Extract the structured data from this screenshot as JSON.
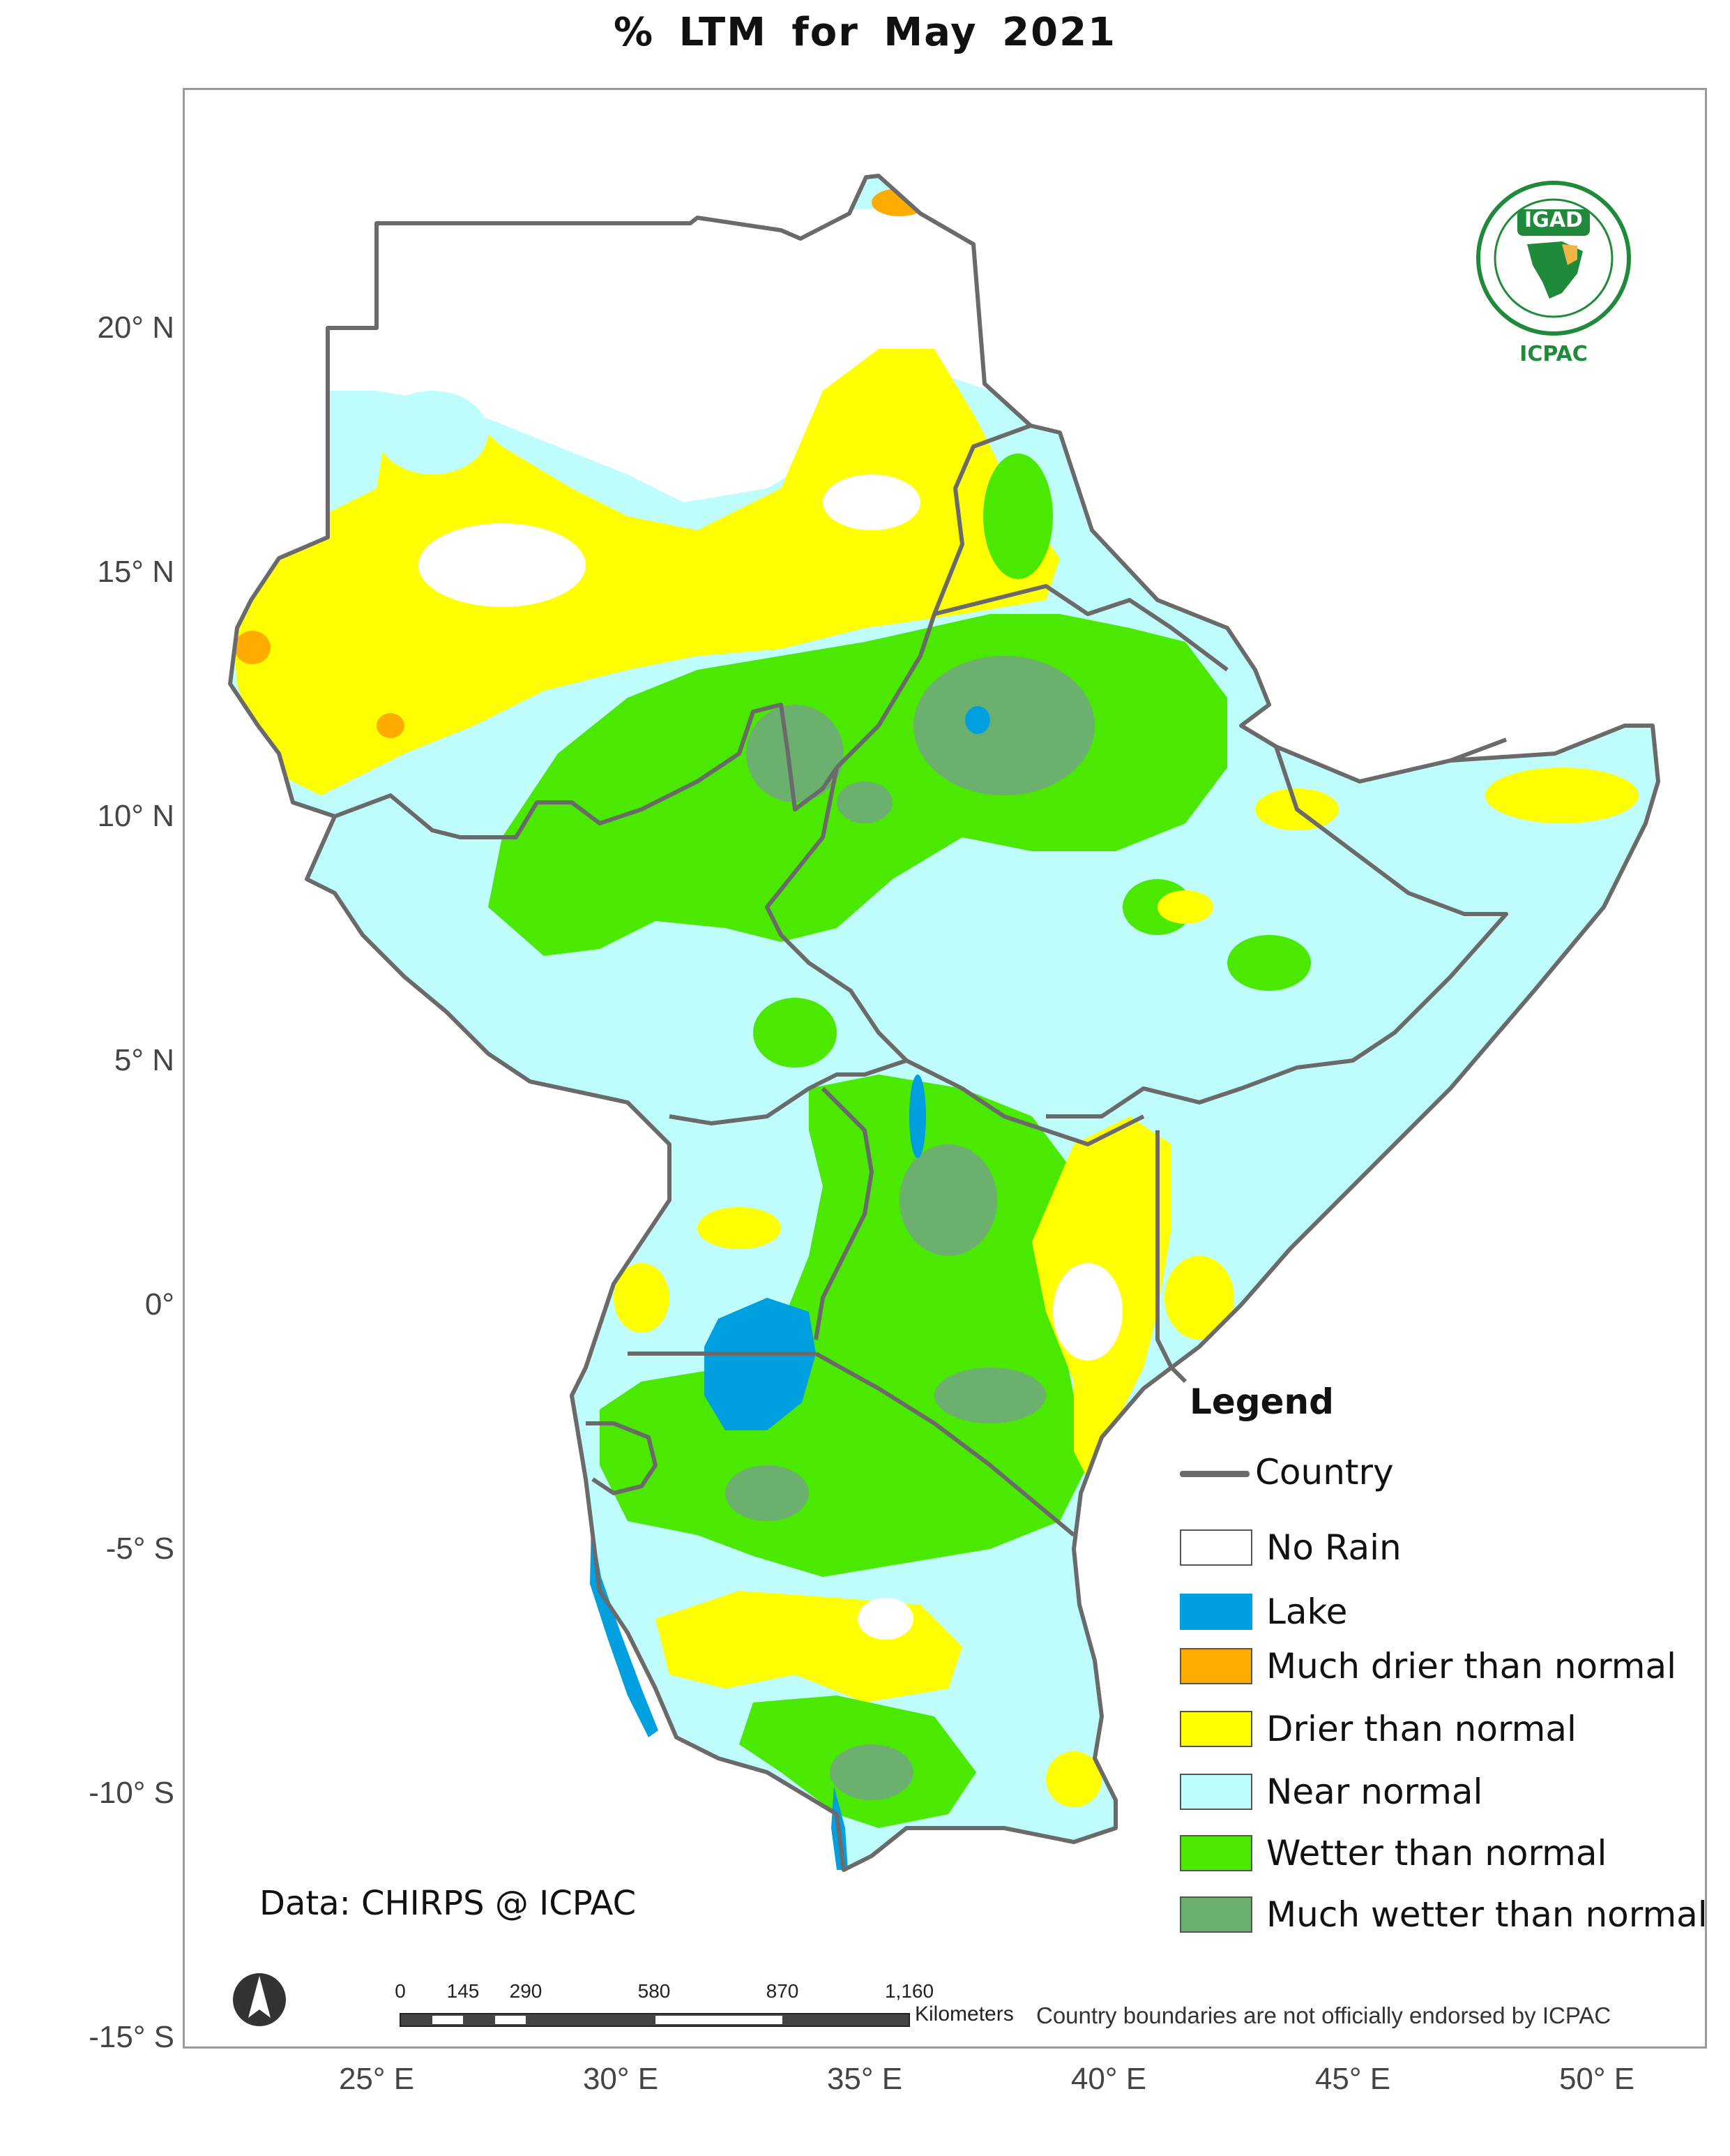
{
  "title": "% LTM  for  May  2021",
  "axes": {
    "latitude_labels": [
      "20° N",
      "15° N",
      "10° N",
      "5° N",
      "0°",
      "-5° S",
      "-10° S",
      "-15° S"
    ],
    "longitude_labels": [
      "25° E",
      "30° E",
      "35° E",
      "40° E",
      "45° E",
      "50° E"
    ]
  },
  "legend": {
    "title": "Legend",
    "items": [
      {
        "label": "Country",
        "kind": "line",
        "color": "#6a6a6a"
      },
      {
        "label": "No Rain",
        "kind": "fill",
        "color": "#ffffff"
      },
      {
        "label": "Lake",
        "kind": "fill",
        "color": "#00a0e0"
      },
      {
        "label": "Much drier than normal",
        "kind": "fill",
        "color": "#ffab00"
      },
      {
        "label": "Drier than normal",
        "kind": "fill",
        "color": "#ffff00"
      },
      {
        "label": "Near normal",
        "kind": "fill",
        "color": "#bffcfc"
      },
      {
        "label": "Wetter than normal",
        "kind": "fill",
        "color": "#4be800"
      },
      {
        "label": "Much wetter than normal",
        "kind": "fill",
        "color": "#6cb070"
      }
    ]
  },
  "data_credit": "Data: CHIRPS @ ICPAC",
  "disclaimer": "Country boundaries are not officially endorsed by ICPAC",
  "scale_bar": {
    "ticks": [
      "0",
      "145",
      "290",
      "580",
      "870",
      "1,160"
    ],
    "unit": "Kilometers"
  },
  "logo": {
    "top_text": "IGAD",
    "bottom_text": "ICPAC"
  },
  "north_arrow": "north-arrow-icon",
  "colors": {
    "no_rain": "#ffffff",
    "lake": "#00a0e0",
    "much_drier": "#ffab00",
    "drier": "#ffff00",
    "near_normal": "#bffcfc",
    "wetter": "#4be800",
    "much_wetter": "#6cb070",
    "boundary": "#6a6a6a"
  }
}
